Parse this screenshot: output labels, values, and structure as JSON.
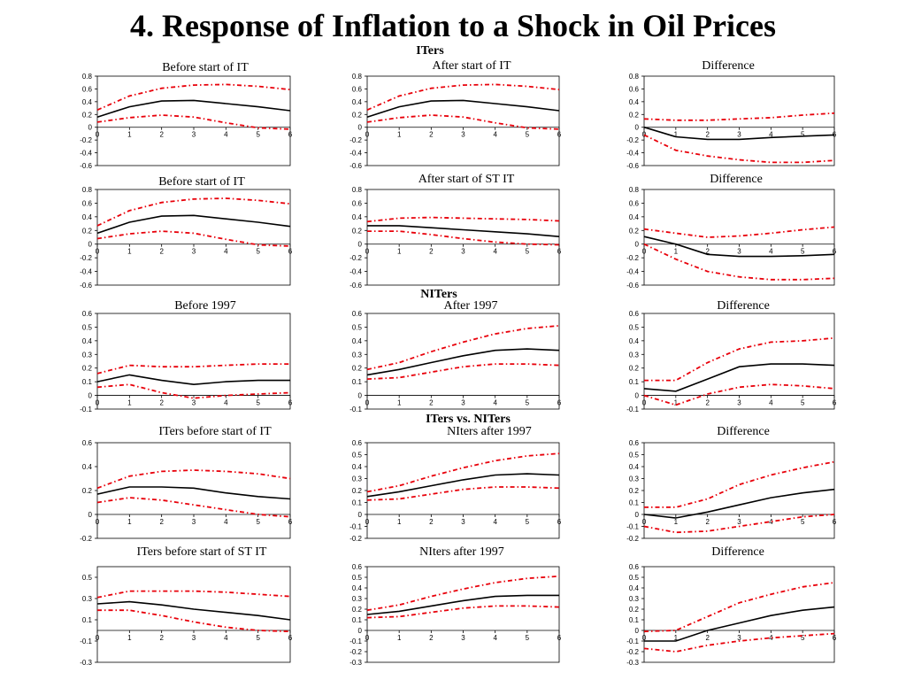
{
  "page_title": "4. Response of Inflation to a Shock in Oil Prices",
  "section_headings": [
    "ITers",
    "NITers",
    "ITers vs. NITers"
  ],
  "colors": {
    "response_line": "#000000",
    "band_line": "#e8000a"
  },
  "chart_data": [
    {
      "type": "line",
      "title": "Before start of IT",
      "x": [
        0,
        1,
        2,
        3,
        4,
        5,
        6
      ],
      "ylim": [
        -0.6,
        0.8
      ],
      "yticks": [
        "0.8",
        "0.6",
        "0.4",
        "0.2",
        "0",
        "-0.2",
        "-0.4",
        "-0.6"
      ],
      "xticks": [
        "0",
        "1",
        "2",
        "3",
        "4",
        "5",
        "6"
      ],
      "series": [
        {
          "role": "response",
          "values": [
            0.16,
            0.32,
            0.41,
            0.42,
            0.37,
            0.32,
            0.26
          ]
        },
        {
          "role": "upper_band",
          "values": [
            0.27,
            0.49,
            0.61,
            0.66,
            0.67,
            0.64,
            0.59
          ]
        },
        {
          "role": "lower_band",
          "values": [
            0.08,
            0.15,
            0.19,
            0.16,
            0.07,
            -0.01,
            -0.03
          ]
        }
      ]
    },
    {
      "type": "line",
      "title": "After start of IT",
      "x": [
        0,
        1,
        2,
        3,
        4,
        5,
        6
      ],
      "ylim": [
        -0.6,
        0.8
      ],
      "yticks": [
        "0.8",
        "0.6",
        "0.4",
        "0.2",
        "0",
        "-0.2",
        "-0.4",
        "-0.6"
      ],
      "xticks": [
        "0",
        "1",
        "2",
        "3",
        "4",
        "5",
        "6"
      ],
      "series": [
        {
          "role": "response",
          "values": [
            0.16,
            0.32,
            0.41,
            0.42,
            0.37,
            0.32,
            0.26
          ]
        },
        {
          "role": "upper_band",
          "values": [
            0.27,
            0.49,
            0.61,
            0.66,
            0.67,
            0.64,
            0.59
          ]
        },
        {
          "role": "lower_band",
          "values": [
            0.08,
            0.15,
            0.19,
            0.16,
            0.07,
            -0.01,
            -0.03
          ]
        }
      ]
    },
    {
      "type": "line",
      "title": "Difference",
      "x": [
        0,
        1,
        2,
        3,
        4,
        5,
        6
      ],
      "ylim": [
        -0.6,
        0.8
      ],
      "yticks": [
        "0.8",
        "0.6",
        "0.4",
        "0.2",
        "0",
        "-0.2",
        "-0.4",
        "-0.6"
      ],
      "xticks": [
        "0",
        "1",
        "2",
        "3",
        "4",
        "5",
        "6"
      ],
      "series": [
        {
          "role": "response",
          "values": [
            0.0,
            -0.15,
            -0.19,
            -0.19,
            -0.16,
            -0.14,
            -0.12
          ]
        },
        {
          "role": "upper_band",
          "values": [
            0.13,
            0.11,
            0.11,
            0.13,
            0.15,
            0.19,
            0.22
          ]
        },
        {
          "role": "lower_band",
          "values": [
            -0.12,
            -0.36,
            -0.45,
            -0.51,
            -0.55,
            -0.55,
            -0.52
          ]
        }
      ]
    },
    {
      "type": "line",
      "title": "Before start of IT",
      "x": [
        0,
        1,
        2,
        3,
        4,
        5,
        6
      ],
      "ylim": [
        -0.6,
        0.8
      ],
      "yticks": [
        "0.8",
        "0.6",
        "0.4",
        "0.2",
        "0",
        "-0.2",
        "-0.4",
        "-0.6"
      ],
      "xticks": [
        "0",
        "1",
        "2",
        "3",
        "4",
        "5",
        "6"
      ],
      "series": [
        {
          "role": "response",
          "values": [
            0.16,
            0.32,
            0.41,
            0.42,
            0.37,
            0.32,
            0.26
          ]
        },
        {
          "role": "upper_band",
          "values": [
            0.27,
            0.49,
            0.61,
            0.66,
            0.67,
            0.64,
            0.59
          ]
        },
        {
          "role": "lower_band",
          "values": [
            0.08,
            0.15,
            0.19,
            0.16,
            0.07,
            -0.01,
            -0.03
          ]
        }
      ]
    },
    {
      "type": "line",
      "title": "After start of ST IT",
      "x": [
        0,
        1,
        2,
        3,
        4,
        5,
        6
      ],
      "ylim": [
        -0.6,
        0.8
      ],
      "yticks": [
        "0.8",
        "0.6",
        "0.4",
        "0.2",
        "0",
        "-0.2",
        "-0.4",
        "-0.6"
      ],
      "xticks": [
        "0",
        "1",
        "2",
        "3",
        "4",
        "5",
        "6"
      ],
      "series": [
        {
          "role": "response",
          "values": [
            0.27,
            0.27,
            0.24,
            0.21,
            0.18,
            0.15,
            0.11
          ]
        },
        {
          "role": "upper_band",
          "values": [
            0.33,
            0.38,
            0.39,
            0.38,
            0.37,
            0.36,
            0.34
          ]
        },
        {
          "role": "lower_band",
          "values": [
            0.19,
            0.19,
            0.14,
            0.08,
            0.03,
            0.0,
            -0.01
          ]
        }
      ]
    },
    {
      "type": "line",
      "title": "Difference",
      "x": [
        0,
        1,
        2,
        3,
        4,
        5,
        6
      ],
      "ylim": [
        -0.6,
        0.8
      ],
      "yticks": [
        "0.8",
        "0.6",
        "0.4",
        "0.2",
        "0",
        "-0.2",
        "-0.4",
        "-0.6"
      ],
      "xticks": [
        "0",
        "1",
        "2",
        "3",
        "4",
        "5",
        "6"
      ],
      "series": [
        {
          "role": "response",
          "values": [
            0.11,
            0.0,
            -0.15,
            -0.18,
            -0.18,
            -0.17,
            -0.15
          ]
        },
        {
          "role": "upper_band",
          "values": [
            0.22,
            0.16,
            0.1,
            0.12,
            0.16,
            0.21,
            0.25
          ]
        },
        {
          "role": "lower_band",
          "values": [
            0.0,
            -0.22,
            -0.4,
            -0.48,
            -0.52,
            -0.52,
            -0.5
          ]
        }
      ]
    },
    {
      "type": "line",
      "title": "Before 1997",
      "x": [
        0,
        1,
        2,
        3,
        4,
        5,
        6
      ],
      "ylim": [
        -0.1,
        0.6
      ],
      "yticks": [
        "0.6",
        "0.5",
        "0.4",
        "0.3",
        "0.2",
        "0.1",
        "0",
        "-0.1"
      ],
      "xticks": [
        "0",
        "1",
        "2",
        "3",
        "4",
        "5",
        "6"
      ],
      "series": [
        {
          "role": "response",
          "values": [
            0.1,
            0.15,
            0.11,
            0.08,
            0.1,
            0.11,
            0.11
          ]
        },
        {
          "role": "upper_band",
          "values": [
            0.16,
            0.22,
            0.21,
            0.21,
            0.22,
            0.23,
            0.23
          ]
        },
        {
          "role": "lower_band",
          "values": [
            0.06,
            0.08,
            0.02,
            -0.02,
            0.0,
            0.01,
            0.02
          ]
        }
      ]
    },
    {
      "type": "line",
      "title": "After 1997",
      "x": [
        0,
        1,
        2,
        3,
        4,
        5,
        6
      ],
      "ylim": [
        -0.1,
        0.6
      ],
      "yticks": [
        "0.6",
        "0.5",
        "0.4",
        "0.3",
        "0.2",
        "0.1",
        "0",
        "-0.1"
      ],
      "xticks": [
        "0",
        "1",
        "2",
        "3",
        "4",
        "5",
        "6"
      ],
      "series": [
        {
          "role": "response",
          "values": [
            0.15,
            0.19,
            0.24,
            0.29,
            0.33,
            0.34,
            0.33
          ]
        },
        {
          "role": "upper_band",
          "values": [
            0.19,
            0.24,
            0.32,
            0.39,
            0.45,
            0.49,
            0.51
          ]
        },
        {
          "role": "lower_band",
          "values": [
            0.12,
            0.13,
            0.17,
            0.21,
            0.23,
            0.23,
            0.22
          ]
        }
      ]
    },
    {
      "type": "line",
      "title": "Difference",
      "x": [
        0,
        1,
        2,
        3,
        4,
        5,
        6
      ],
      "ylim": [
        -0.1,
        0.6
      ],
      "yticks": [
        "0.6",
        "0.5",
        "0.4",
        "0.3",
        "0.2",
        "0.1",
        "0",
        "-0.1"
      ],
      "xticks": [
        "0",
        "1",
        "2",
        "3",
        "4",
        "5",
        "6"
      ],
      "series": [
        {
          "role": "response",
          "values": [
            0.05,
            0.03,
            0.12,
            0.21,
            0.23,
            0.23,
            0.22
          ]
        },
        {
          "role": "upper_band",
          "values": [
            0.11,
            0.11,
            0.24,
            0.34,
            0.39,
            0.4,
            0.42
          ]
        },
        {
          "role": "lower_band",
          "values": [
            0.0,
            -0.07,
            0.01,
            0.06,
            0.08,
            0.07,
            0.05
          ]
        }
      ]
    },
    {
      "type": "line",
      "title": "ITers before start of IT",
      "x": [
        0,
        1,
        2,
        3,
        4,
        5,
        6
      ],
      "ylim": [
        -0.2,
        0.6
      ],
      "yticks": [
        "0.6",
        "0.4",
        "0.2",
        "0",
        "-0.2"
      ],
      "xticks": [
        "0",
        "1",
        "2",
        "3",
        "4",
        "5",
        "6"
      ],
      "series": [
        {
          "role": "response",
          "values": [
            0.17,
            0.23,
            0.23,
            0.22,
            0.18,
            0.15,
            0.13
          ]
        },
        {
          "role": "upper_band",
          "values": [
            0.22,
            0.32,
            0.36,
            0.37,
            0.36,
            0.34,
            0.3
          ]
        },
        {
          "role": "lower_band",
          "values": [
            0.1,
            0.14,
            0.12,
            0.08,
            0.04,
            0.0,
            -0.02
          ]
        }
      ]
    },
    {
      "type": "line",
      "title": "NIters after 1997",
      "x": [
        0,
        1,
        2,
        3,
        4,
        5,
        6
      ],
      "ylim": [
        -0.2,
        0.6
      ],
      "yticks": [
        "0.6",
        "0.5",
        "0.4",
        "0.3",
        "0.2",
        "0.1",
        "0",
        "-0.1",
        "-0.2"
      ],
      "xticks": [
        "0",
        "1",
        "2",
        "3",
        "4",
        "5",
        "6"
      ],
      "series": [
        {
          "role": "response",
          "values": [
            0.15,
            0.19,
            0.24,
            0.29,
            0.33,
            0.34,
            0.33
          ]
        },
        {
          "role": "upper_band",
          "values": [
            0.19,
            0.24,
            0.32,
            0.39,
            0.45,
            0.49,
            0.51
          ]
        },
        {
          "role": "lower_band",
          "values": [
            0.12,
            0.13,
            0.17,
            0.21,
            0.23,
            0.23,
            0.22
          ]
        }
      ]
    },
    {
      "type": "line",
      "title": "Difference",
      "x": [
        0,
        1,
        2,
        3,
        4,
        5,
        6
      ],
      "ylim": [
        -0.2,
        0.6
      ],
      "yticks": [
        "0.6",
        "0.5",
        "0.4",
        "0.3",
        "0.2",
        "0.1",
        "0",
        "-0.1",
        "-0.2"
      ],
      "xticks": [
        "0",
        "1",
        "2",
        "3",
        "4",
        "5",
        "6"
      ],
      "series": [
        {
          "role": "response",
          "values": [
            0.0,
            -0.03,
            0.02,
            0.08,
            0.14,
            0.18,
            0.21
          ]
        },
        {
          "role": "upper_band",
          "values": [
            0.06,
            0.06,
            0.13,
            0.25,
            0.33,
            0.39,
            0.44
          ]
        },
        {
          "role": "lower_band",
          "values": [
            -0.1,
            -0.15,
            -0.14,
            -0.1,
            -0.06,
            -0.02,
            0.0
          ]
        }
      ]
    },
    {
      "type": "line",
      "title": "ITers before start of ST IT",
      "x": [
        0,
        1,
        2,
        3,
        4,
        5,
        6
      ],
      "ylim": [
        -0.3,
        0.6
      ],
      "yticks": [
        "0.5",
        "0.3",
        "0.1",
        "-0.1",
        "-0.3"
      ],
      "xticks": [
        "0",
        "1",
        "2",
        "3",
        "4",
        "5",
        "6"
      ],
      "series": [
        {
          "role": "response",
          "values": [
            0.25,
            0.27,
            0.24,
            0.2,
            0.17,
            0.14,
            0.1
          ]
        },
        {
          "role": "upper_band",
          "values": [
            0.31,
            0.37,
            0.37,
            0.37,
            0.36,
            0.34,
            0.32
          ]
        },
        {
          "role": "lower_band",
          "values": [
            0.19,
            0.19,
            0.14,
            0.08,
            0.03,
            0.0,
            -0.01
          ]
        }
      ]
    },
    {
      "type": "line",
      "title": "NIters after 1997",
      "x": [
        0,
        1,
        2,
        3,
        4,
        5,
        6
      ],
      "ylim": [
        -0.3,
        0.6
      ],
      "yticks": [
        "0.6",
        "0.5",
        "0.4",
        "0.3",
        "0.2",
        "0.1",
        "0",
        "-0.1",
        "-0.2",
        "-0.3"
      ],
      "xticks": [
        "0",
        "1",
        "2",
        "3",
        "4",
        "5",
        "6"
      ],
      "series": [
        {
          "role": "response",
          "values": [
            0.15,
            0.18,
            0.23,
            0.28,
            0.32,
            0.33,
            0.33
          ]
        },
        {
          "role": "upper_band",
          "values": [
            0.19,
            0.24,
            0.32,
            0.39,
            0.45,
            0.49,
            0.51
          ]
        },
        {
          "role": "lower_band",
          "values": [
            0.12,
            0.13,
            0.17,
            0.21,
            0.23,
            0.23,
            0.22
          ]
        }
      ]
    },
    {
      "type": "line",
      "title": "Difference",
      "x": [
        0,
        1,
        2,
        3,
        4,
        5,
        6
      ],
      "ylim": [
        -0.3,
        0.6
      ],
      "yticks": [
        "0.6",
        "0.5",
        "0.4",
        "0.3",
        "0.2",
        "0.1",
        "0",
        "-0.1",
        "-0.2",
        "-0.3"
      ],
      "xticks": [
        "0",
        "1",
        "2",
        "3",
        "4",
        "5",
        "6"
      ],
      "series": [
        {
          "role": "response",
          "values": [
            -0.1,
            -0.1,
            0.0,
            0.07,
            0.14,
            0.19,
            0.22
          ]
        },
        {
          "role": "upper_band",
          "values": [
            -0.01,
            0.0,
            0.13,
            0.26,
            0.34,
            0.41,
            0.45
          ]
        },
        {
          "role": "lower_band",
          "values": [
            -0.17,
            -0.2,
            -0.14,
            -0.1,
            -0.07,
            -0.05,
            -0.03
          ]
        }
      ]
    }
  ]
}
